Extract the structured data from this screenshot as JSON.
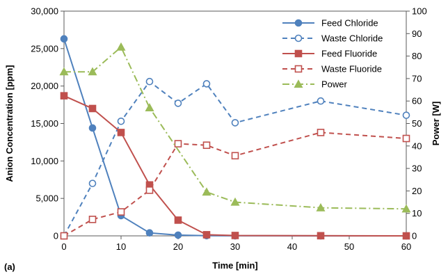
{
  "chart_data": {
    "type": "line",
    "panel_label": "(a)",
    "xlabel": "Time [min]",
    "ylabel": "Anion Concentration [ppm]",
    "y2label": "Power [W]",
    "xlim": [
      0,
      60
    ],
    "ylim": [
      0,
      30000
    ],
    "y2lim": [
      0,
      100
    ],
    "x_ticks": [
      0,
      10,
      20,
      30,
      40,
      50,
      60
    ],
    "x_tick_labels": [
      "0",
      "10",
      "20",
      "30",
      "40",
      "50",
      "60"
    ],
    "y_ticks": [
      0,
      5000,
      10000,
      15000,
      20000,
      25000,
      30000
    ],
    "y_tick_labels": [
      "0",
      "5,000",
      "10,000",
      "15,000",
      "20,000",
      "25,000",
      "30,000"
    ],
    "y2_ticks": [
      0,
      10,
      20,
      30,
      40,
      50,
      60,
      70,
      80,
      90,
      100
    ],
    "y2_tick_labels": [
      "0",
      "10",
      "20",
      "30",
      "40",
      "50",
      "60",
      "70",
      "80",
      "90",
      "100"
    ],
    "grid": false,
    "legend_position": "top-right",
    "series": [
      {
        "name": "Feed Chloride",
        "axis": "left",
        "color": "#4f81bd",
        "dash": "solid",
        "marker": "circle",
        "filled": true,
        "x": [
          0,
          5,
          10,
          15,
          20,
          25,
          30,
          45,
          60
        ],
        "values": [
          26300,
          14400,
          2700,
          400,
          100,
          20,
          10,
          0,
          0
        ]
      },
      {
        "name": "Waste Chloride",
        "axis": "left",
        "color": "#4f81bd",
        "dash": "dashed",
        "marker": "circle",
        "filled": false,
        "x": [
          0,
          5,
          10,
          15,
          20,
          25,
          30,
          45,
          60
        ],
        "values": [
          0,
          7000,
          15300,
          20600,
          17700,
          20300,
          15100,
          18000,
          16100
        ]
      },
      {
        "name": "Feed Fluoride",
        "axis": "left",
        "color": "#c0504d",
        "dash": "solid",
        "marker": "square",
        "filled": true,
        "x": [
          0,
          5,
          10,
          15,
          20,
          25,
          30,
          45,
          60
        ],
        "values": [
          18700,
          17000,
          13800,
          6800,
          2100,
          150,
          50,
          20,
          0
        ]
      },
      {
        "name": "Waste Fluoride",
        "axis": "left",
        "color": "#c0504d",
        "dash": "dashed",
        "marker": "square",
        "filled": false,
        "x": [
          0,
          5,
          10,
          15,
          20,
          25,
          30,
          45,
          60
        ],
        "values": [
          0,
          2200,
          3200,
          6100,
          12300,
          12100,
          10700,
          13800,
          13000
        ]
      },
      {
        "name": "Power",
        "axis": "right",
        "color": "#9bbb59",
        "dash": "dashdot",
        "marker": "triangle",
        "filled": true,
        "x": [
          0,
          5,
          10,
          15,
          25,
          30,
          45,
          60
        ],
        "values": [
          73,
          73,
          84,
          57,
          19.5,
          15,
          12.5,
          12
        ]
      }
    ]
  }
}
